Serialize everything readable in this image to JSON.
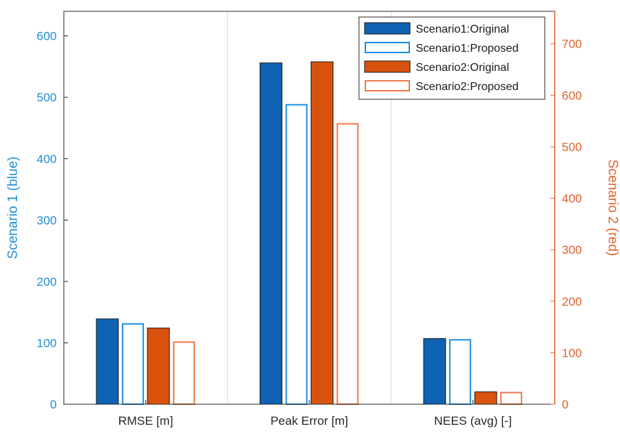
{
  "chart_data": {
    "type": "bar",
    "categories": [
      "RMSE [m]",
      "Peak Error [m]",
      "NEES (avg) [-]"
    ],
    "left_axis": {
      "label": "Scenario 1 (blue)",
      "ylim": [
        0,
        640
      ],
      "ticks": [
        0,
        100,
        200,
        300,
        400,
        500,
        600
      ],
      "color": "#1f8ed6"
    },
    "right_axis": {
      "label": "Scenario 2 (red)",
      "ylim": [
        0,
        763
      ],
      "ticks": [
        0,
        100,
        200,
        300,
        400,
        500,
        600,
        700
      ],
      "color": "#e0622a"
    },
    "series": [
      {
        "name": "Scenario1:Original",
        "axis": "left",
        "style": "filled",
        "color": "#0f62b2",
        "values": [
          139,
          556,
          107
        ]
      },
      {
        "name": "Scenario1:Proposed",
        "axis": "left",
        "style": "outline",
        "color": "#1d8fe0",
        "values": [
          132,
          489,
          106
        ]
      },
      {
        "name": "Scenario2:Original",
        "axis": "right",
        "style": "filled",
        "color": "#d9530f",
        "values": [
          148,
          665,
          24
        ]
      },
      {
        "name": "Scenario2:Proposed",
        "axis": "right",
        "style": "outline",
        "color": "#ee7a48",
        "values": [
          122,
          546,
          24
        ]
      }
    ],
    "grid": "vertical",
    "legend_position": "top-right"
  }
}
